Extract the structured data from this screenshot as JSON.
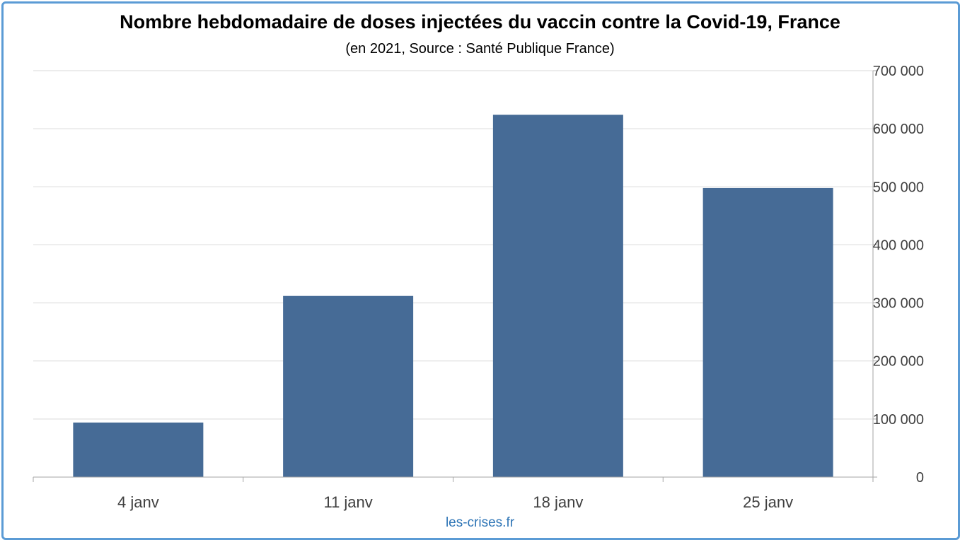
{
  "chart_data": {
    "type": "bar",
    "title": "Nombre hebdomadaire de doses injectées du vaccin contre la Covid-19, France",
    "subtitle": "(en 2021, Source : Santé Publique France)",
    "categories": [
      "4 janv",
      "11 janv",
      "18 janv",
      "25 janv"
    ],
    "values": [
      94000,
      312000,
      624000,
      498000
    ],
    "ylim": [
      0,
      700000
    ],
    "yticks": [
      0,
      100000,
      200000,
      300000,
      400000,
      500000,
      600000,
      700000
    ],
    "ytick_labels": [
      "0",
      "100 000",
      "200 000",
      "300 000",
      "400 000",
      "500 000",
      "600 000",
      "700 000"
    ],
    "y_axis_side": "right",
    "grid": true,
    "legend": "none",
    "bar_color": "#466b96",
    "grid_color": "#d9d9d9",
    "axis_color": "#a6a6a6"
  },
  "footer": {
    "source": "les-crises.fr"
  },
  "frame_color": "#5b9bd5"
}
